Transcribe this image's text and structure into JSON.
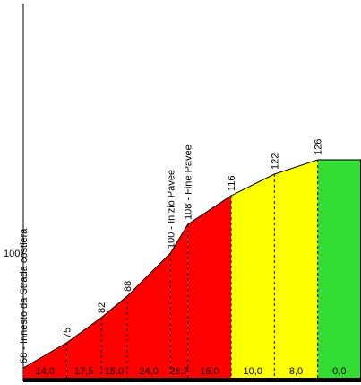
{
  "chart_data": {
    "type": "area",
    "title": "",
    "xlabel": "",
    "ylabel": "",
    "y_tick_labels": [
      "100"
    ],
    "y_ticks": [
      100
    ],
    "ylim": [
      63,
      137
    ],
    "grid": false,
    "colors": {
      "red": "#ff0000",
      "yellow": "#ffff00",
      "green": "#33dd33",
      "outline": "#000000",
      "baseline": "#000000"
    },
    "points": [
      {
        "x": 0.0,
        "y": 68,
        "label": "68 - Innesto da Strada costiera"
      },
      {
        "x": 0.25,
        "y": 75,
        "label": "75"
      },
      {
        "x": 0.45,
        "y": 82,
        "label": "82"
      },
      {
        "x": 0.6,
        "y": 88,
        "label": "88"
      },
      {
        "x": 0.85,
        "y": 100,
        "label": "100 - Inizio Pavee"
      },
      {
        "x": 0.95,
        "y": 108,
        "label": "108 - Fine Pavee"
      },
      {
        "x": 1.2,
        "y": 116,
        "label": "116"
      },
      {
        "x": 1.45,
        "y": 122,
        "label": "122"
      },
      {
        "x": 1.7,
        "y": 126,
        "label": "126"
      },
      {
        "x": 1.95,
        "y": 126,
        "label": ""
      }
    ],
    "segments": [
      {
        "grade": "14,0",
        "color": "red"
      },
      {
        "grade": "17,5",
        "color": "red"
      },
      {
        "grade": "15,0",
        "color": "red"
      },
      {
        "grade": "24,0",
        "color": "red"
      },
      {
        "grade": "26,7",
        "color": "red"
      },
      {
        "grade": "16,0",
        "color": "red"
      },
      {
        "grade": "10,0",
        "color": "yellow"
      },
      {
        "grade": "8,0",
        "color": "yellow"
      },
      {
        "grade": "0,0",
        "color": "green"
      }
    ]
  }
}
